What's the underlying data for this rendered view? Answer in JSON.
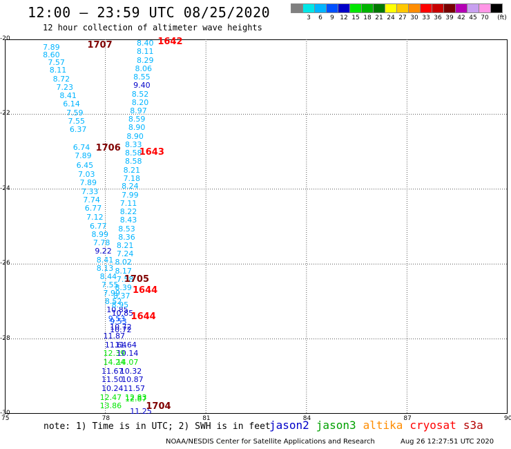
{
  "header": {
    "title": "12:00 – 23:59 UTC 08/25/2020",
    "subtitle": "12 hour collection of altimeter wave heights"
  },
  "legend": {
    "unit": "(ft)",
    "swatches": [
      {
        "color": "#808080",
        "label": ""
      },
      {
        "color": "#00e6e6",
        "label": "3"
      },
      {
        "color": "#00b4ff",
        "label": "6"
      },
      {
        "color": "#0050ff",
        "label": "9"
      },
      {
        "color": "#0000c8",
        "label": "12"
      },
      {
        "color": "#00e600",
        "label": "15"
      },
      {
        "color": "#00b400",
        "label": "18"
      },
      {
        "color": "#007800",
        "label": "21"
      },
      {
        "color": "#ffff00",
        "label": "24"
      },
      {
        "color": "#ffc800",
        "label": "27"
      },
      {
        "color": "#ff8c00",
        "label": "30"
      },
      {
        "color": "#ff0000",
        "label": "33"
      },
      {
        "color": "#c80000",
        "label": "36"
      },
      {
        "color": "#780000",
        "label": "39"
      },
      {
        "color": "#b400b4",
        "label": "42"
      },
      {
        "color": "#c8a0f0",
        "label": "45"
      },
      {
        "color": "#ff96e6",
        "label": "70"
      },
      {
        "color": "#000000",
        "label": ""
      }
    ]
  },
  "map": {
    "lon_range": [
      75,
      90
    ],
    "lat_range": [
      -20,
      -30
    ],
    "x_ticks": [
      "75",
      "78",
      "81",
      "84",
      "87",
      "90"
    ],
    "y_ticks": [
      "-20",
      "-22",
      "-24",
      "-26",
      "-28",
      "-30"
    ],
    "grid": "dotted"
  },
  "tracks": [
    {
      "label": "1707",
      "color": "#800000",
      "lon": 77.75,
      "lat": -20.15
    },
    {
      "label": "1642",
      "color": "#ff0000",
      "lon": 79.85,
      "lat": -20.05
    },
    {
      "label": "1706",
      "color": "#800000",
      "lon": 78.0,
      "lat": -22.9
    },
    {
      "label": "1643",
      "color": "#ff0000",
      "lon": 79.3,
      "lat": -23.0
    },
    {
      "label": "1705",
      "color": "#800000",
      "lon": 78.85,
      "lat": -26.4
    },
    {
      "label": "1644",
      "color": "#ff0000",
      "lon": 79.1,
      "lat": -26.7
    },
    {
      "label": "1644",
      "color": "#ff0000",
      "lon": 79.05,
      "lat": -27.4
    },
    {
      "label": "1704",
      "color": "#800000",
      "lon": 79.5,
      "lat": -29.8
    }
  ],
  "measurements": [
    {
      "v": "7.89",
      "lon": 76.3,
      "lat": -20.2,
      "c": "#00b4ff"
    },
    {
      "v": "8.60",
      "lon": 76.3,
      "lat": -20.4,
      "c": "#00b4ff"
    },
    {
      "v": "7.57",
      "lon": 76.45,
      "lat": -20.6,
      "c": "#00b4ff"
    },
    {
      "v": "8.11",
      "lon": 76.5,
      "lat": -20.82,
      "c": "#00b4ff"
    },
    {
      "v": "8.72",
      "lon": 76.6,
      "lat": -21.05,
      "c": "#00b4ff"
    },
    {
      "v": "7.23",
      "lon": 76.7,
      "lat": -21.28,
      "c": "#00b4ff"
    },
    {
      "v": "8.41",
      "lon": 76.8,
      "lat": -21.5,
      "c": "#00b4ff"
    },
    {
      "v": "6.14",
      "lon": 76.9,
      "lat": -21.72,
      "c": "#00b4ff"
    },
    {
      "v": "7.59",
      "lon": 77.0,
      "lat": -21.95,
      "c": "#00b4ff"
    },
    {
      "v": "7.55",
      "lon": 77.05,
      "lat": -22.18,
      "c": "#00b4ff"
    },
    {
      "v": "6.37",
      "lon": 77.1,
      "lat": -22.4,
      "c": "#00b4ff"
    },
    {
      "v": "6.74",
      "lon": 77.2,
      "lat": -22.88,
      "c": "#00b4ff"
    },
    {
      "v": "7.89",
      "lon": 77.25,
      "lat": -23.1,
      "c": "#00b4ff"
    },
    {
      "v": "6.45",
      "lon": 77.3,
      "lat": -23.35,
      "c": "#00b4ff"
    },
    {
      "v": "7.03",
      "lon": 77.35,
      "lat": -23.6,
      "c": "#00b4ff"
    },
    {
      "v": "7.89",
      "lon": 77.4,
      "lat": -23.82,
      "c": "#00b4ff"
    },
    {
      "v": "7.33",
      "lon": 77.45,
      "lat": -24.05,
      "c": "#00b4ff"
    },
    {
      "v": "7.74",
      "lon": 77.5,
      "lat": -24.28,
      "c": "#00b4ff"
    },
    {
      "v": "6.77",
      "lon": 77.55,
      "lat": -24.5,
      "c": "#00b4ff"
    },
    {
      "v": "7.12",
      "lon": 77.6,
      "lat": -24.75,
      "c": "#00b4ff"
    },
    {
      "v": "6.77",
      "lon": 77.7,
      "lat": -24.98,
      "c": "#00b4ff"
    },
    {
      "v": "8.99",
      "lon": 77.75,
      "lat": -25.2,
      "c": "#00b4ff"
    },
    {
      "v": "7.78",
      "lon": 77.8,
      "lat": -25.42,
      "c": "#00b4ff"
    },
    {
      "v": "9.22",
      "lon": 77.85,
      "lat": -25.65,
      "c": "#0000c8"
    },
    {
      "v": "8.41",
      "lon": 77.9,
      "lat": -25.88,
      "c": "#00b4ff"
    },
    {
      "v": "8.13",
      "lon": 77.9,
      "lat": -26.1,
      "c": "#00b4ff"
    },
    {
      "v": "8.44",
      "lon": 78.0,
      "lat": -26.32,
      "c": "#00b4ff"
    },
    {
      "v": "7.55",
      "lon": 78.05,
      "lat": -26.55,
      "c": "#00b4ff"
    },
    {
      "v": "7.99",
      "lon": 78.1,
      "lat": -26.78,
      "c": "#00b4ff"
    },
    {
      "v": "8.52",
      "lon": 78.15,
      "lat": -27.0,
      "c": "#00b4ff"
    },
    {
      "v": "10.85",
      "lon": 78.2,
      "lat": -27.22,
      "c": "#0000c8"
    },
    {
      "v": "9.53",
      "lon": 78.25,
      "lat": -27.45,
      "c": "#0050ff"
    },
    {
      "v": "10.72",
      "lon": 78.3,
      "lat": -27.68,
      "c": "#0000c8"
    },
    {
      "v": "11.87",
      "lon": 78.1,
      "lat": -27.92,
      "c": "#0000c8"
    },
    {
      "v": "11.64",
      "lon": 78.15,
      "lat": -28.15,
      "c": "#0000c8"
    },
    {
      "v": "12.39",
      "lon": 78.1,
      "lat": -28.38,
      "c": "#00e600"
    },
    {
      "v": "14.24",
      "lon": 78.1,
      "lat": -28.62,
      "c": "#00e600"
    },
    {
      "v": "11.67",
      "lon": 78.05,
      "lat": -28.85,
      "c": "#0000c8"
    },
    {
      "v": "11.50",
      "lon": 78.05,
      "lat": -29.08,
      "c": "#0000c8"
    },
    {
      "v": "10.24",
      "lon": 78.05,
      "lat": -29.32,
      "c": "#0000c8"
    },
    {
      "v": "12.47",
      "lon": 78.0,
      "lat": -29.55,
      "c": "#00e600"
    },
    {
      "v": "13.86",
      "lon": 78.0,
      "lat": -29.78,
      "c": "#00e600"
    },
    {
      "v": "8.40",
      "lon": 79.1,
      "lat": -20.1,
      "c": "#00b4ff"
    },
    {
      "v": "8.11",
      "lon": 79.1,
      "lat": -20.32,
      "c": "#00b4ff"
    },
    {
      "v": "8.29",
      "lon": 79.1,
      "lat": -20.55,
      "c": "#00b4ff"
    },
    {
      "v": "8.06",
      "lon": 79.05,
      "lat": -20.78,
      "c": "#00b4ff"
    },
    {
      "v": "8.55",
      "lon": 79.0,
      "lat": -21.0,
      "c": "#00b4ff"
    },
    {
      "v": "9.40",
      "lon": 79.0,
      "lat": -21.22,
      "c": "#0000c8"
    },
    {
      "v": "8.52",
      "lon": 78.95,
      "lat": -21.45,
      "c": "#00b4ff"
    },
    {
      "v": "8.20",
      "lon": 78.95,
      "lat": -21.68,
      "c": "#00b4ff"
    },
    {
      "v": "8.97",
      "lon": 78.9,
      "lat": -21.9,
      "c": "#00b4ff"
    },
    {
      "v": "8.59",
      "lon": 78.85,
      "lat": -22.12,
      "c": "#00b4ff"
    },
    {
      "v": "8.90",
      "lon": 78.85,
      "lat": -22.35,
      "c": "#00b4ff"
    },
    {
      "v": "8.90",
      "lon": 78.8,
      "lat": -22.58,
      "c": "#00b4ff"
    },
    {
      "v": "8.33",
      "lon": 78.75,
      "lat": -22.8,
      "c": "#00b4ff"
    },
    {
      "v": "8.58",
      "lon": 78.75,
      "lat": -23.02,
      "c": "#00b4ff"
    },
    {
      "v": "8.58",
      "lon": 78.75,
      "lat": -23.25,
      "c": "#00b4ff"
    },
    {
      "v": "8.21",
      "lon": 78.7,
      "lat": -23.48,
      "c": "#00b4ff"
    },
    {
      "v": "7.18",
      "lon": 78.7,
      "lat": -23.7,
      "c": "#00b4ff"
    },
    {
      "v": "8.24",
      "lon": 78.65,
      "lat": -23.92,
      "c": "#00b4ff"
    },
    {
      "v": "7.99",
      "lon": 78.65,
      "lat": -24.15,
      "c": "#00b4ff"
    },
    {
      "v": "7.11",
      "lon": 78.6,
      "lat": -24.38,
      "c": "#00b4ff"
    },
    {
      "v": "8.22",
      "lon": 78.6,
      "lat": -24.6,
      "c": "#00b4ff"
    },
    {
      "v": "8.43",
      "lon": 78.6,
      "lat": -24.82,
      "c": "#00b4ff"
    },
    {
      "v": "8.53",
      "lon": 78.55,
      "lat": -25.05,
      "c": "#00b4ff"
    },
    {
      "v": "8.36",
      "lon": 78.55,
      "lat": -25.28,
      "c": "#00b4ff"
    },
    {
      "v": "8.21",
      "lon": 78.5,
      "lat": -25.5,
      "c": "#00b4ff"
    },
    {
      "v": "7.24",
      "lon": 78.5,
      "lat": -25.72,
      "c": "#00b4ff"
    },
    {
      "v": "8.02",
      "lon": 78.45,
      "lat": -25.95,
      "c": "#00b4ff"
    },
    {
      "v": "8.17",
      "lon": 78.45,
      "lat": -26.18,
      "c": "#00b4ff"
    },
    {
      "v": "7.58",
      "lon": 78.5,
      "lat": -26.4,
      "c": "#00b4ff"
    },
    {
      "v": "8.39",
      "lon": 78.45,
      "lat": -26.62,
      "c": "#00b4ff"
    },
    {
      "v": "8.37",
      "lon": 78.4,
      "lat": -26.85,
      "c": "#00b4ff"
    },
    {
      "v": "8.95",
      "lon": 78.35,
      "lat": -27.08,
      "c": "#00b4ff"
    },
    {
      "v": "10.85",
      "lon": 78.35,
      "lat": -27.3,
      "c": "#0000c8"
    },
    {
      "v": "9.53",
      "lon": 78.3,
      "lat": -27.52,
      "c": "#0050ff"
    },
    {
      "v": "10.72",
      "lon": 78.3,
      "lat": -27.75,
      "c": "#0000c8"
    },
    {
      "v": "11.64",
      "lon": 78.45,
      "lat": -28.15,
      "c": "#0000c8"
    },
    {
      "v": "10.14",
      "lon": 78.5,
      "lat": -28.38,
      "c": "#0000c8"
    },
    {
      "v": "14.07",
      "lon": 78.5,
      "lat": -28.62,
      "c": "#00e600"
    },
    {
      "v": "10.32",
      "lon": 78.6,
      "lat": -28.85,
      "c": "#0000c8"
    },
    {
      "v": "10.87",
      "lon": 78.65,
      "lat": -29.08,
      "c": "#0000c8"
    },
    {
      "v": "11.57",
      "lon": 78.7,
      "lat": -29.32,
      "c": "#0000c8"
    },
    {
      "v": "12.83",
      "lon": 78.75,
      "lat": -29.55,
      "c": "#00e600"
    },
    {
      "v": "12.87",
      "lon": 78.75,
      "lat": -29.6,
      "c": "#00e600"
    },
    {
      "v": "11.25",
      "lon": 78.9,
      "lat": -29.92,
      "c": "#0000c8"
    }
  ],
  "footer": {
    "note": "note: 1) Time is in UTC; 2) SWH is in feet",
    "satellites": [
      {
        "name": "jason2",
        "color": "#0000c8"
      },
      {
        "name": "jason3",
        "color": "#00a000"
      },
      {
        "name": "altika",
        "color": "#ff8c00"
      },
      {
        "name": "cryosat",
        "color": "#ff0000"
      },
      {
        "name": "s3a",
        "color": "#b40000"
      }
    ],
    "credit": "NOAA/NESDIS Center for Satellite Applications and Research",
    "timestamp": "Aug 26 12:27:51 UTC 2020"
  }
}
